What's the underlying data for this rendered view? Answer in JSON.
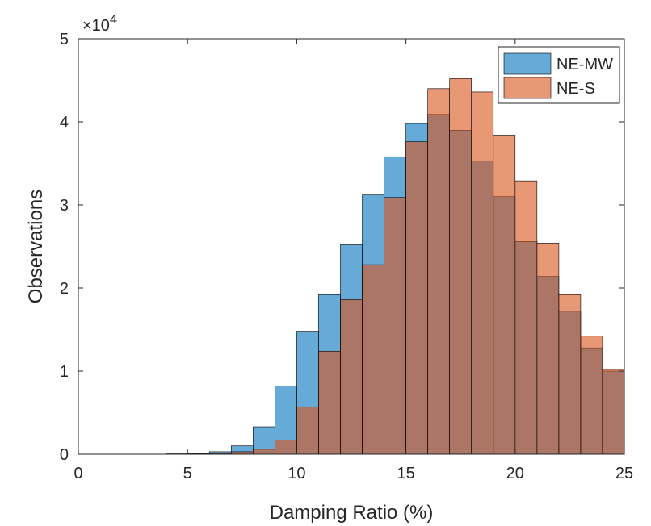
{
  "chart_data": {
    "type": "bar",
    "title": "",
    "xlabel": "Damping Ratio (%)",
    "ylabel": "Observations",
    "xlim": [
      0,
      25
    ],
    "ylim": [
      0,
      50000
    ],
    "xticks": [
      0,
      5,
      10,
      15,
      20,
      25
    ],
    "yticks": [
      0,
      10000,
      20000,
      30000,
      40000,
      50000
    ],
    "ytick_labels": [
      "0",
      "1",
      "2",
      "3",
      "4",
      "5"
    ],
    "y_exponent": "×10",
    "y_exponent_power": "4",
    "bin_width": 1,
    "bin_edges_start": [
      0,
      1,
      2,
      3,
      4,
      5,
      6,
      7,
      8,
      9,
      10,
      11,
      12,
      13,
      14,
      15,
      16,
      17,
      18,
      19,
      20,
      21,
      22,
      23,
      24
    ],
    "grid": false,
    "legend_position": "top-right",
    "series": [
      {
        "name": "NE-MW",
        "color": "#0072BD",
        "values": [
          0,
          0,
          0,
          0,
          50,
          100,
          300,
          1000,
          3300,
          8200,
          14800,
          19200,
          25200,
          31200,
          35800,
          39800,
          40900,
          39000,
          35300,
          31000,
          25600,
          21400,
          17200,
          12800,
          10000
        ]
      },
      {
        "name": "NE-S",
        "color": "#D95319",
        "values": [
          0,
          0,
          0,
          0,
          20,
          50,
          100,
          300,
          600,
          1700,
          5700,
          12400,
          18600,
          22800,
          30900,
          37600,
          44000,
          45200,
          43600,
          38400,
          32900,
          25400,
          19200,
          14200,
          10200
        ]
      }
    ]
  }
}
